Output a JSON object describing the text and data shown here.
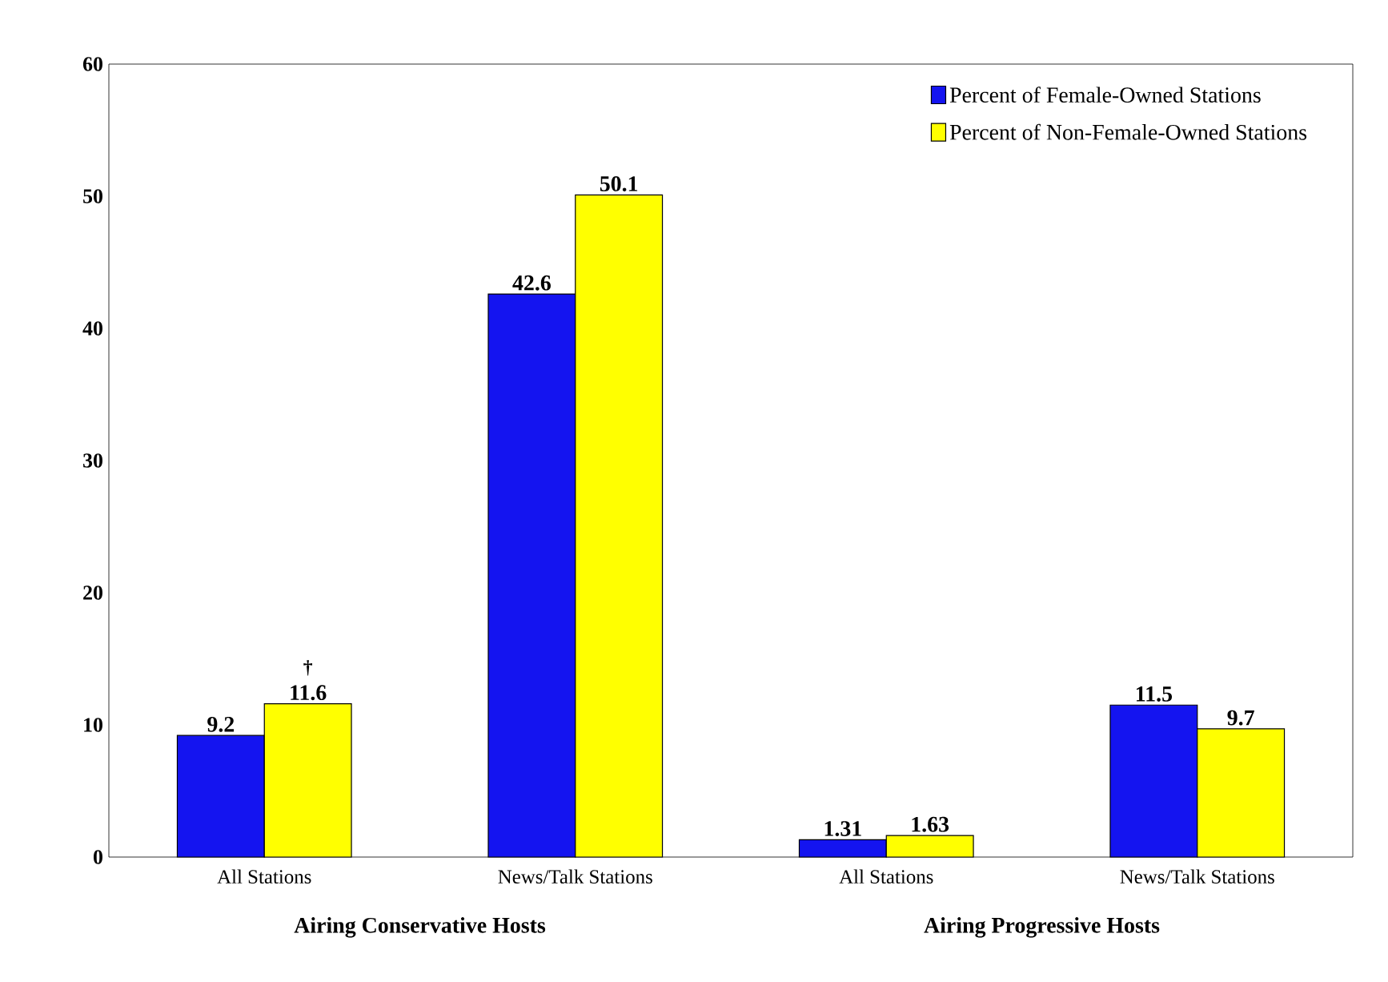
{
  "chart_data": {
    "type": "bar",
    "categories": [
      "All Stations",
      "News/Talk Stations",
      "All Stations",
      "News/Talk Stations"
    ],
    "series": [
      {
        "name": "Percent of Female-Owned Stations",
        "color": "#1414f0",
        "values": [
          9.2,
          42.6,
          1.31,
          11.5
        ]
      },
      {
        "name": "Percent of Non-Female-Owned Stations",
        "color": "#ffff00",
        "values": [
          11.6,
          50.1,
          1.63,
          9.7
        ]
      }
    ],
    "ylim": [
      0,
      60
    ],
    "yticks": [
      0,
      10,
      20,
      30,
      40,
      50,
      60
    ],
    "data_labels": true,
    "legend": "top right",
    "grid": false,
    "annotations": [
      "Airing Conservative Hosts",
      "Airing Progressive Hosts",
      {
        "text": "†",
        "x": "All Stations",
        "y": 11.6
      }
    ]
  }
}
